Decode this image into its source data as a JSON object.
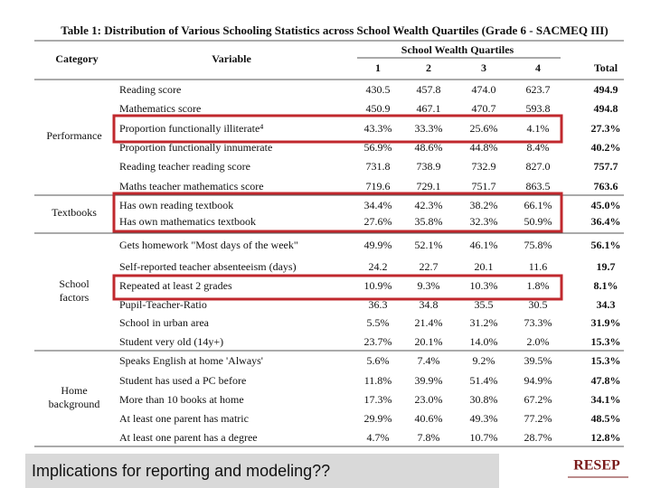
{
  "header": {
    "title": "Table 1: Distribution  of Various Schooling  Statistics across School Wealth Quartiles (Grade 6 - SACMEQ III)"
  },
  "table": {
    "category_header": "Category",
    "variable_header": "Variable",
    "group_header": "School  Wealth Quartiles",
    "columns": [
      "1",
      "2",
      "3",
      "4",
      "Total"
    ],
    "groups": [
      {
        "label": [
          "Performance"
        ],
        "rows": [
          {
            "variable": "Reading score",
            "values": [
              "430.5",
              "457.8",
              "474.0",
              "623.7",
              "494.9"
            ]
          },
          {
            "variable": "Mathematics score",
            "values": [
              "450.9",
              "467.1",
              "470.7",
              "593.8",
              "494.8"
            ]
          },
          {
            "variable": "Proportion functionally illiterate⁴",
            "values": [
              "43.3%",
              "33.3%",
              "25.6%",
              "4.1%",
              "27.3%"
            ]
          },
          {
            "variable": "Proportion functionally innumerate",
            "values": [
              "56.9%",
              "48.6%",
              "44.8%",
              "8.4%",
              "40.2%"
            ]
          },
          {
            "variable": "Reading teacher reading score",
            "values": [
              "731.8",
              "738.9",
              "732.9",
              "827.0",
              "757.7"
            ]
          },
          {
            "variable": "Maths teacher mathematics score",
            "values": [
              "719.6",
              "729.1",
              "751.7",
              "863.5",
              "763.6"
            ]
          }
        ]
      },
      {
        "label": [
          "Textbooks"
        ],
        "rows": [
          {
            "variable": "Has own reading textbook",
            "values": [
              "34.4%",
              "42.3%",
              "38.2%",
              "66.1%",
              "45.0%"
            ]
          },
          {
            "variable": "Has own mathematics textbook",
            "values": [
              "27.6%",
              "35.8%",
              "32.3%",
              "50.9%",
              "36.4%"
            ]
          }
        ]
      },
      {
        "label": [
          "School",
          "factors"
        ],
        "rows": [
          {
            "variable": "Gets homework \"Most days of the week\"",
            "values": [
              "49.9%",
              "52.1%",
              "46.1%",
              "75.8%",
              "56.1%"
            ]
          },
          {
            "variable": "Self-reported teacher absenteeism (days)",
            "values": [
              "24.2",
              "22.7",
              "20.1",
              "11.6",
              "19.7"
            ]
          },
          {
            "variable": "Repeated at least 2 grades",
            "values": [
              "10.9%",
              "9.3%",
              "10.3%",
              "1.8%",
              "8.1%"
            ]
          },
          {
            "variable": "Pupil-Teacher-Ratio",
            "values": [
              "36.3",
              "34.8",
              "35.5",
              "30.5",
              "34.3"
            ]
          },
          {
            "variable": "School in urban area",
            "values": [
              "5.5%",
              "21.4%",
              "31.2%",
              "73.3%",
              "31.9%"
            ]
          },
          {
            "variable": "Student very old (14y+)",
            "values": [
              "23.7%",
              "20.1%",
              "14.0%",
              "2.0%",
              "15.3%"
            ]
          }
        ]
      },
      {
        "label": [
          "Home",
          "background"
        ],
        "rows": [
          {
            "variable": "Speaks English at home 'Always'",
            "values": [
              "5.6%",
              "7.4%",
              "9.2%",
              "39.5%",
              "15.3%"
            ]
          },
          {
            "variable": "Student has used a PC before",
            "values": [
              "11.8%",
              "39.9%",
              "51.4%",
              "94.9%",
              "47.8%"
            ]
          },
          {
            "variable": "More than 10 books at home",
            "values": [
              "17.3%",
              "23.0%",
              "30.8%",
              "67.2%",
              "34.1%"
            ]
          },
          {
            "variable": "At least one parent has matric",
            "values": [
              "29.9%",
              "40.6%",
              "49.3%",
              "77.2%",
              "48.5%"
            ]
          },
          {
            "variable": "At least one parent has a degree",
            "values": [
              "4.7%",
              "7.8%",
              "10.7%",
              "28.7%",
              "12.8%"
            ]
          }
        ]
      }
    ]
  },
  "footer": {
    "caption": "Implications for reporting and modeling??",
    "logo": "RESEP"
  }
}
